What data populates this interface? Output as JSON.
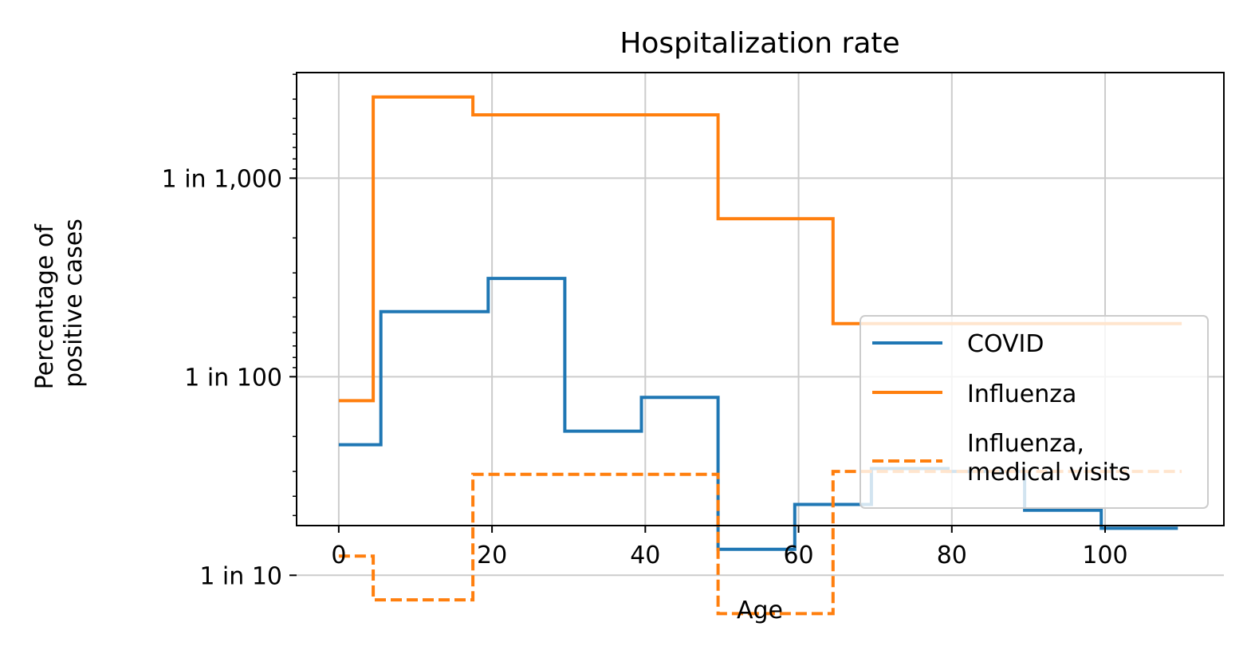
{
  "chart_data": {
    "type": "line",
    "title": "Hospitalization rate",
    "xlabel": "Age",
    "ylabel": [
      "Percentage of",
      "positive cases"
    ],
    "xlim": [
      -5.5,
      115.5
    ],
    "ylim": [
      0.000294,
      0.0562
    ],
    "yscale": "log",
    "grid": true,
    "legend_position": "lower-right",
    "x_ticks": [
      0,
      20,
      40,
      60,
      80,
      100
    ],
    "x_tick_labels": [
      "0",
      "20",
      "40",
      "60",
      "80",
      "100"
    ],
    "y_ticks": [
      0.001,
      0.01,
      0.1
    ],
    "y_tick_labels": [
      "1 in 1,000",
      "1 in 100",
      "1 in 10"
    ],
    "series": [
      {
        "name": "COVID",
        "color": "#1f77b4",
        "style": "solid",
        "steps": [
          {
            "x0": 0,
            "x1": 5.5,
            "y": 0.022
          },
          {
            "x0": 5.5,
            "x1": 19.5,
            "y": 0.0047
          },
          {
            "x0": 19.5,
            "x1": 29.5,
            "y": 0.0032
          },
          {
            "x0": 29.5,
            "x1": 39.5,
            "y": 0.0188
          },
          {
            "x0": 39.5,
            "x1": 49.5,
            "y": 0.0127
          },
          {
            "x0": 49.5,
            "x1": 59.5,
            "y": 0.074
          },
          {
            "x0": 59.5,
            "x1": 69.5,
            "y": 0.044
          },
          {
            "x0": 69.5,
            "x1": 79.5,
            "y": 0.029
          },
          {
            "x0": 79.5,
            "x1": 89.5,
            "y": 0.03
          },
          {
            "x0": 89.5,
            "x1": 99.5,
            "y": 0.047
          },
          {
            "x0": 99.5,
            "x1": 109.5,
            "y": 0.058
          }
        ]
      },
      {
        "name": "Influenza",
        "color": "#ff7f0e",
        "style": "solid",
        "steps": [
          {
            "x0": 0,
            "x1": 4.5,
            "y": 0.0132
          },
          {
            "x0": 4.5,
            "x1": 17.5,
            "y": 0.00039
          },
          {
            "x0": 17.5,
            "x1": 49.5,
            "y": 0.00048
          },
          {
            "x0": 49.5,
            "x1": 64.5,
            "y": 0.0016
          },
          {
            "x0": 64.5,
            "x1": 110,
            "y": 0.0054
          }
        ]
      },
      {
        "name": "Influenza,\nmedical visits",
        "color": "#ff7f0e",
        "style": "dashed",
        "steps": [
          {
            "x0": 0,
            "x1": 4.5,
            "y": 0.08
          },
          {
            "x0": 4.5,
            "x1": 17.5,
            "y": 0.133
          },
          {
            "x0": 17.5,
            "x1": 49.5,
            "y": 0.031
          },
          {
            "x0": 49.5,
            "x1": 64.5,
            "y": 0.156
          },
          {
            "x0": 64.5,
            "x1": 110,
            "y": 0.03
          }
        ]
      }
    ]
  }
}
